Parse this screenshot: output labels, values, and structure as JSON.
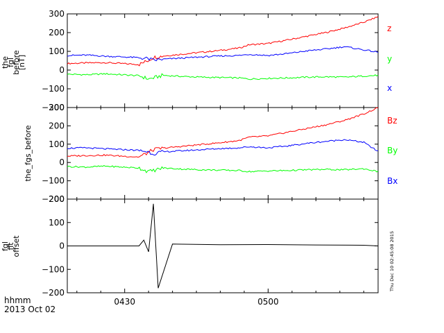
{
  "colors": {
    "x": "#0000ff",
    "y": "#00ff00",
    "z": "#ff0000",
    "frame": "#000000"
  },
  "footer": {
    "time_label": "hhmm",
    "date_label": "2013 Oct 02"
  },
  "timestamp": "Thu Dec 10 02:45:08 2015",
  "chart_data": [
    {
      "type": "line",
      "ylabel_lines": [
        "the",
        "fgl",
        "before",
        "[nT]"
      ],
      "ylim": [
        -200,
        300
      ],
      "yticks": [
        -200,
        -100,
        0,
        100,
        200,
        300
      ],
      "x": [
        "04:18",
        "04:22",
        "04:26",
        "04:30",
        "04:33",
        "04:35",
        "04:36",
        "04:38",
        "04:42",
        "04:46",
        "04:50",
        "04:54",
        "04:56",
        "05:00",
        "05:04",
        "05:08",
        "05:12",
        "05:16",
        "05:20",
        "05:23"
      ],
      "series": [
        {
          "name": "z",
          "color": "#ff0000",
          "values": [
            35,
            38,
            40,
            34,
            30,
            52,
            68,
            75,
            85,
            95,
            105,
            118,
            135,
            142,
            160,
            180,
            200,
            225,
            255,
            285
          ]
        },
        {
          "name": "y",
          "color": "#00ff00",
          "values": [
            -22,
            -25,
            -20,
            -26,
            -30,
            -48,
            -42,
            -28,
            -34,
            -38,
            -40,
            -42,
            -48,
            -44,
            -42,
            -38,
            -36,
            -38,
            -32,
            -28
          ]
        },
        {
          "name": "x",
          "color": "#0000ff",
          "values": [
            78,
            80,
            74,
            70,
            66,
            60,
            52,
            58,
            64,
            70,
            75,
            78,
            84,
            78,
            88,
            102,
            112,
            125,
            108,
            95
          ]
        }
      ]
    },
    {
      "type": "line",
      "ylabel_lines": [
        "the_fgs_before"
      ],
      "ylim": [
        -200,
        300
      ],
      "yticks": [
        -200,
        -100,
        0,
        100,
        200,
        300
      ],
      "x": [
        "04:18",
        "04:22",
        "04:26",
        "04:30",
        "04:33",
        "04:35",
        "04:36",
        "04:38",
        "04:42",
        "04:46",
        "04:50",
        "04:54",
        "04:56",
        "05:00",
        "05:04",
        "05:08",
        "05:12",
        "05:16",
        "05:20",
        "05:23"
      ],
      "series": [
        {
          "name": "Bz",
          "color": "#ff0000",
          "values": [
            35,
            38,
            40,
            34,
            30,
            55,
            70,
            78,
            88,
            98,
            108,
            120,
            138,
            145,
            165,
            185,
            205,
            230,
            265,
            300
          ]
        },
        {
          "name": "By",
          "color": "#00ff00",
          "values": [
            -22,
            -25,
            -20,
            -26,
            -30,
            -50,
            -44,
            -30,
            -36,
            -40,
            -42,
            -44,
            -50,
            -46,
            -44,
            -40,
            -38,
            -40,
            -34,
            -50
          ]
        },
        {
          "name": "Bx",
          "color": "#0000ff",
          "values": [
            78,
            80,
            74,
            70,
            66,
            58,
            48,
            58,
            64,
            70,
            76,
            80,
            86,
            80,
            90,
            104,
            115,
            125,
            110,
            60
          ]
        }
      ]
    },
    {
      "type": "line",
      "ylabel_lines": [
        "fgl",
        "fit",
        "offset"
      ],
      "ylim": [
        -200,
        200
      ],
      "yticks": [
        -200,
        -100,
        0,
        100,
        200
      ],
      "xticks": [
        "0430",
        "0500"
      ],
      "x": [
        "04:18",
        "04:30",
        "04:33",
        "04:34",
        "04:35",
        "04:36",
        "04:37",
        "04:40",
        "04:50",
        "05:00",
        "05:10",
        "05:20",
        "05:23"
      ],
      "series": [
        {
          "name": "",
          "color": "#000000",
          "values": [
            0,
            0,
            0,
            25,
            -25,
            180,
            -180,
            8,
            5,
            6,
            4,
            3,
            0
          ]
        }
      ]
    }
  ]
}
